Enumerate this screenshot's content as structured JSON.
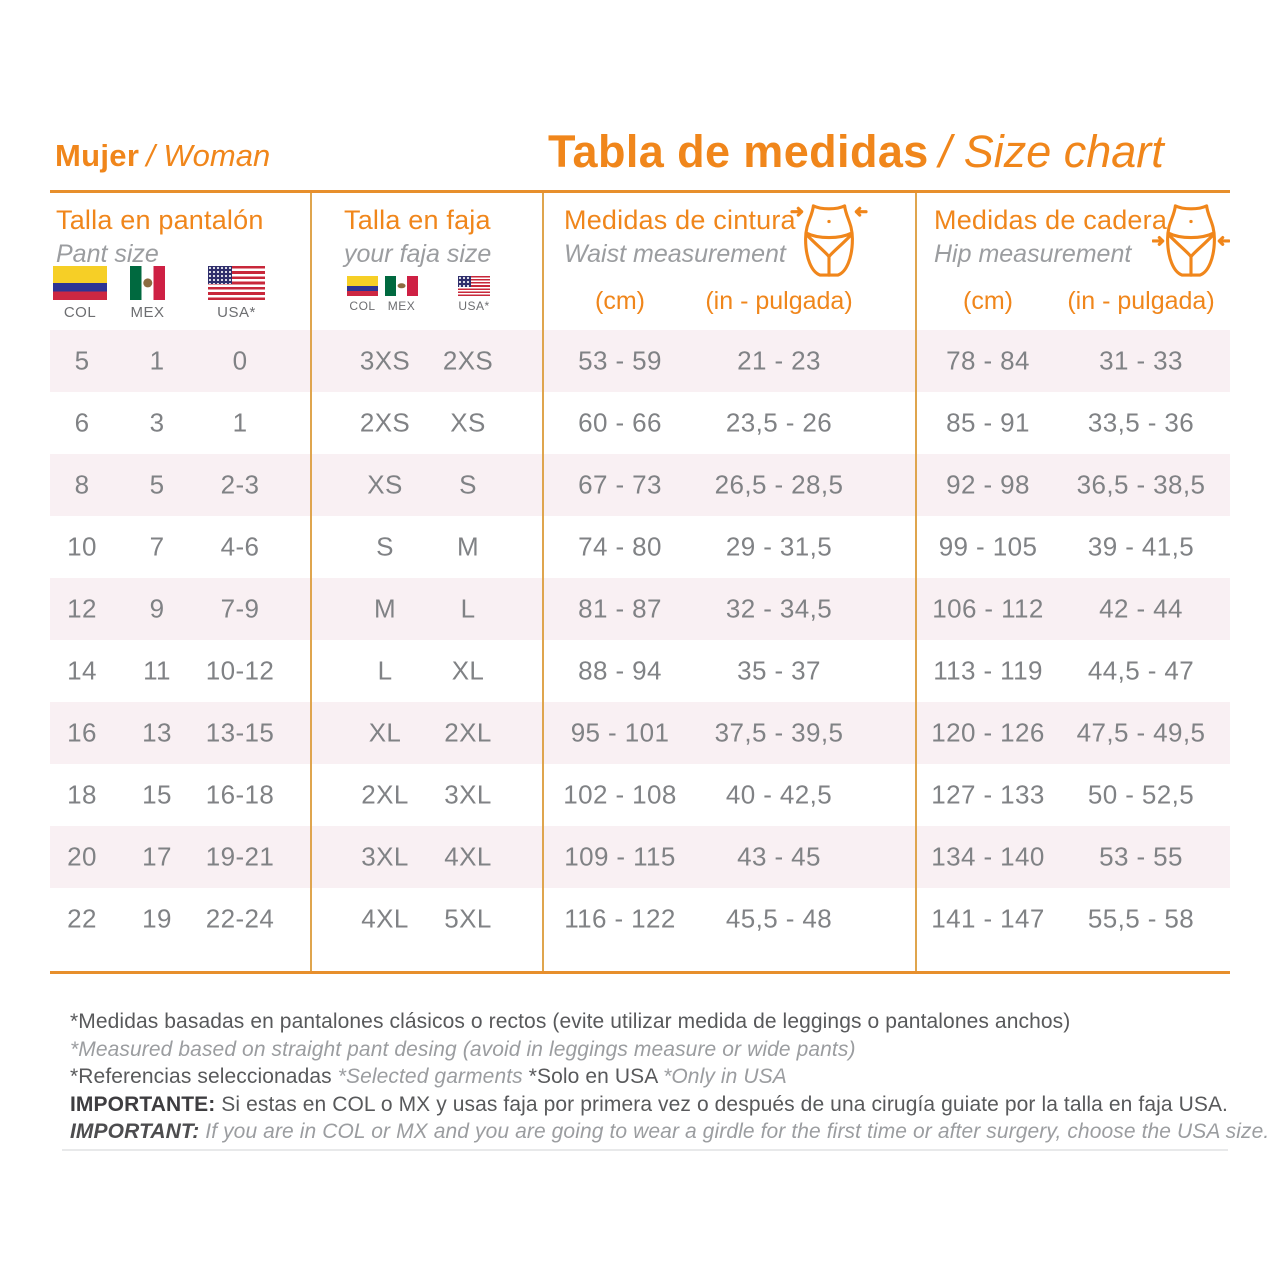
{
  "header": {
    "gender_es": "Mujer",
    "gender_en": "/ Woman",
    "title_es": "Tabla de medidas",
    "title_en": "/ Size chart"
  },
  "columns": {
    "pant": {
      "title": "Talla en pantalón",
      "subtitle": "Pant size",
      "flags": [
        {
          "icon": "colombia-flag",
          "type": "col",
          "label": "COL"
        },
        {
          "icon": "mexico-flag",
          "type": "mex",
          "label": "MEX"
        },
        {
          "icon": "usa-flag",
          "type": "usa",
          "label": "USA*"
        }
      ]
    },
    "faja": {
      "title": "Talla en faja",
      "subtitle": "your faja size",
      "flags": [
        {
          "icon": "colombia-flag",
          "type": "col",
          "label": "COL"
        },
        {
          "icon": "mexico-flag",
          "type": "mex",
          "label": "MEX"
        },
        {
          "icon": "usa-flag",
          "type": "usa",
          "label": "USA*"
        }
      ]
    },
    "waist": {
      "title": "Medidas de cintura",
      "subtitle": "Waist measurement",
      "icon": "waist-measure-icon",
      "units": [
        "(cm)",
        "(in - pulgada)"
      ]
    },
    "hip": {
      "title": "Medidas de cadera",
      "subtitle": "Hip measurement",
      "icon": "hip-measure-icon",
      "units": [
        "(cm)",
        "(in - pulgada)"
      ]
    }
  },
  "rows": [
    [
      "5",
      "1",
      "0",
      "3XS",
      "2XS",
      "53 - 59",
      "21 - 23",
      "78 - 84",
      "31 - 33"
    ],
    [
      "6",
      "3",
      "1",
      "2XS",
      "XS",
      "60 - 66",
      "23,5 - 26",
      "85 - 91",
      "33,5 - 36"
    ],
    [
      "8",
      "5",
      "2-3",
      "XS",
      "S",
      "67 - 73",
      "26,5 - 28,5",
      "92 - 98",
      "36,5 - 38,5"
    ],
    [
      "10",
      "7",
      "4-6",
      "S",
      "M",
      "74 - 80",
      "29 - 31,5",
      "99 - 105",
      "39 - 41,5"
    ],
    [
      "12",
      "9",
      "7-9",
      "M",
      "L",
      "81 - 87",
      "32 - 34,5",
      "106 - 112",
      "42 - 44"
    ],
    [
      "14",
      "11",
      "10-12",
      "L",
      "XL",
      "88 - 94",
      "35 - 37",
      "113 - 119",
      "44,5 - 47"
    ],
    [
      "16",
      "13",
      "13-15",
      "XL",
      "2XL",
      "95 - 101",
      "37,5 - 39,5",
      "120 - 126",
      "47,5 - 49,5"
    ],
    [
      "18",
      "15",
      "16-18",
      "2XL",
      "3XL",
      "102 - 108",
      "40 - 42,5",
      "127 - 133",
      "50 - 52,5"
    ],
    [
      "20",
      "17",
      "19-21",
      "3XL",
      "4XL",
      "109 - 115",
      "43 - 45",
      "134 - 140",
      "53 - 55"
    ],
    [
      "22",
      "19",
      "22-24",
      "4XL",
      "5XL",
      "116 - 122",
      "45,5 - 48",
      "141 - 147",
      "55,5 - 58"
    ]
  ],
  "notes": [
    {
      "segments": [
        {
          "text": "*Medidas basadas en pantalones clásicos o rectos (evite utilizar medida de leggings o pantalones anchos)",
          "style": "regular"
        }
      ]
    },
    {
      "segments": [
        {
          "text": "*Measured based on straight pant desing (avoid in leggings measure or wide pants)",
          "style": "italic"
        }
      ]
    },
    {
      "segments": [
        {
          "text": "*Referencias seleccionadas ",
          "style": "regular"
        },
        {
          "text": "*Selected garments ",
          "style": "italic"
        },
        {
          "text": "*Solo en USA ",
          "style": "regular"
        },
        {
          "text": "*Only in USA",
          "style": "italic"
        }
      ]
    },
    {
      "segments": [
        {
          "text": "IMPORTANTE: ",
          "style": "bold"
        },
        {
          "text": "Si estas en COL o MX y usas faja por primera vez o después de una cirugía guiate por la talla en faja USA.",
          "style": "regular"
        }
      ]
    },
    {
      "segments": [
        {
          "text": "IMPORTANT: ",
          "style": "bold-italic"
        },
        {
          "text": "If you are in COL or MX and you are going to wear a girdle for the first time or after surgery, choose the USA size.",
          "style": "italic"
        }
      ]
    }
  ],
  "colors": {
    "accent": "#F0861B",
    "line_strong": "#E78F2C",
    "line_soft": "#DFA54E",
    "stripe": "#F9F0F3",
    "text": "#808285",
    "muted": "#9B9DA0",
    "note_text": "#58595B",
    "note_dark": "#3E3D40"
  }
}
